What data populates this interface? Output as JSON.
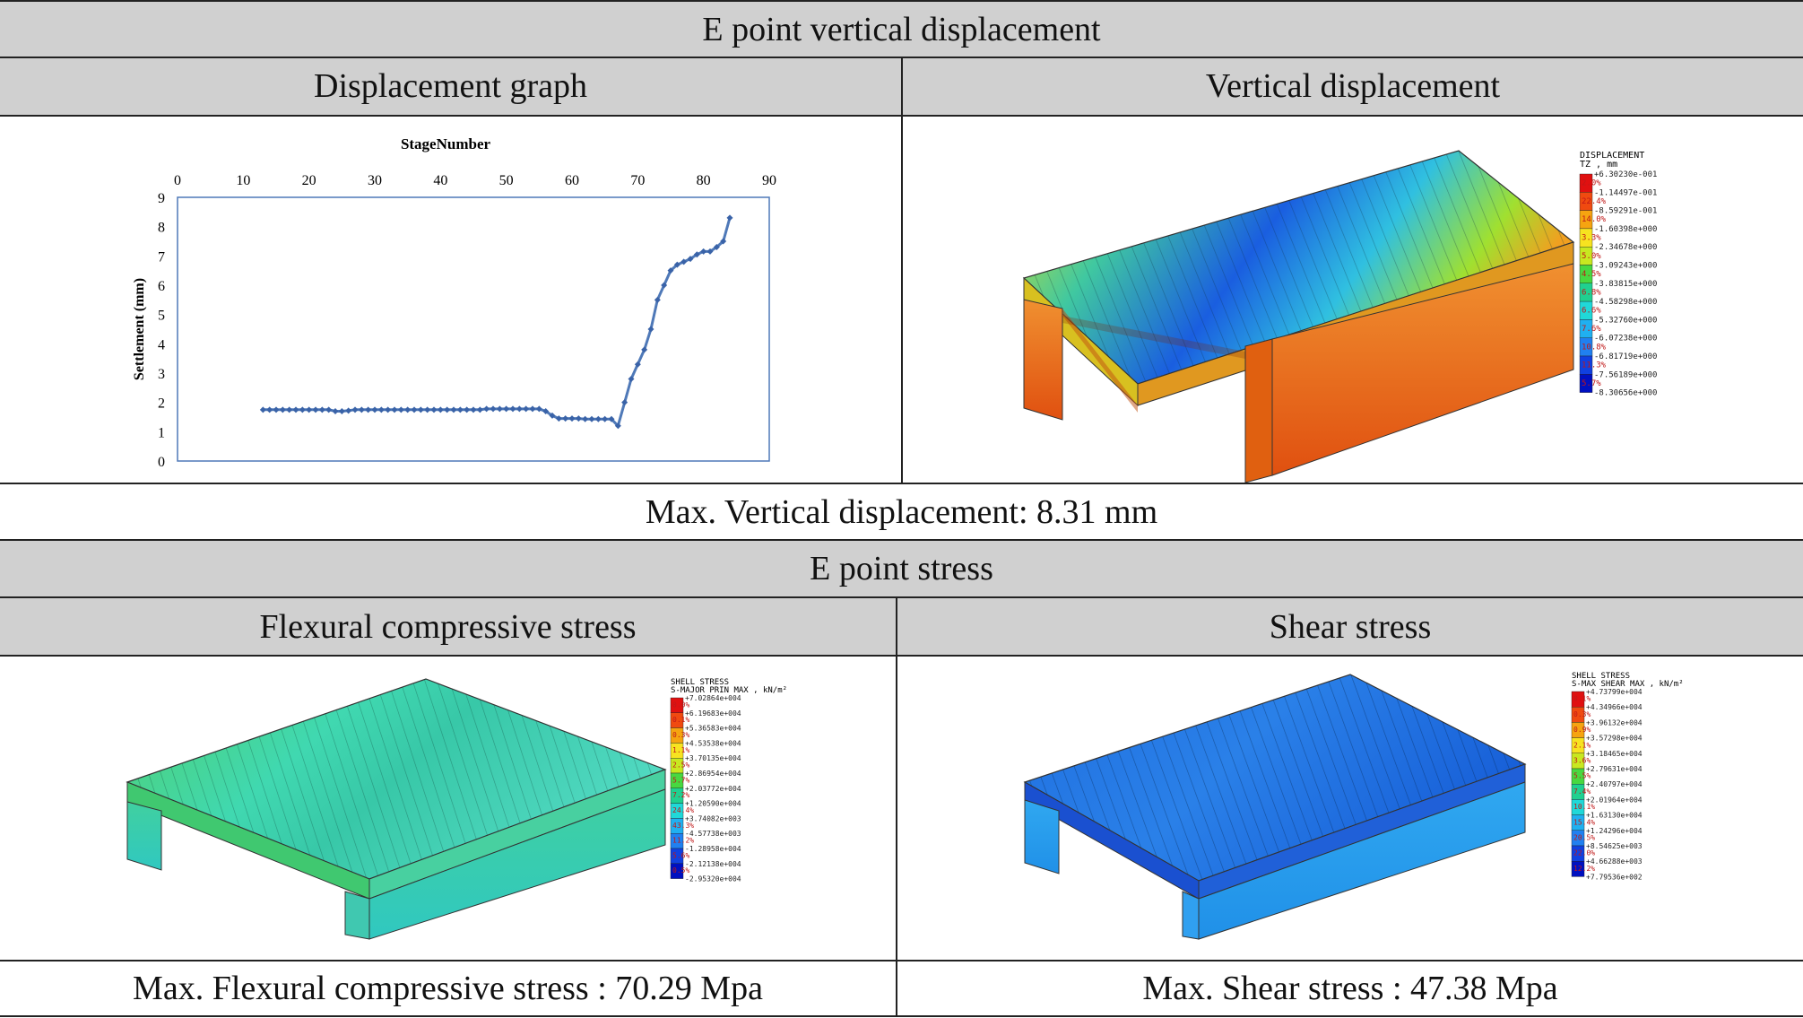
{
  "title": "E point vertical displacement",
  "displacement": {
    "graph_header": "Displacement graph",
    "contour_header": "Vertical displacement",
    "caption": "Max. Vertical displacement: 8.31 mm",
    "legend_title": "DISPLACEMENT",
    "legend_subtitle": "TZ , mm",
    "legend_values": [
      "+6.30230e-001",
      "-1.14497e-001",
      "-8.59291e-001",
      "-1.60398e+000",
      "-2.34678e+000",
      "-3.09243e+000",
      "-3.83815e+000",
      "-4.58298e+000",
      "-5.32760e+000",
      "-6.07238e+000",
      "-6.81719e+000",
      "-7.56189e+000",
      "-8.30656e+000"
    ],
    "legend_pcts": [
      "2.0%",
      "22.4%",
      "14.0%",
      "3.3%",
      "5.0%",
      "4.5%",
      "6.8%",
      "6.6%",
      "7.6%",
      "10.8%",
      "11.3%",
      "5.7%"
    ],
    "legend_colors": [
      "#e01010",
      "#f04a10",
      "#f6a410",
      "#f7e320",
      "#c8e820",
      "#48d840",
      "#20d090",
      "#20d8d8",
      "#20b0f0",
      "#2080f0",
      "#1040e0",
      "#0010c0"
    ]
  },
  "chart_data": {
    "type": "line",
    "title": "StageNumber",
    "xlabel": "StageNumber",
    "ylabel": "Settlement (mm)",
    "xlim": [
      0,
      90
    ],
    "ylim": [
      0,
      9
    ],
    "x_ticks": [
      "0",
      "10",
      "20",
      "30",
      "40",
      "50",
      "60",
      "70",
      "80",
      "90"
    ],
    "y_ticks": [
      "0",
      "1",
      "2",
      "3",
      "4",
      "5",
      "6",
      "7",
      "8",
      "9"
    ],
    "x": [
      13,
      14,
      15,
      16,
      17,
      18,
      19,
      20,
      21,
      22,
      23,
      24,
      25,
      26,
      27,
      28,
      29,
      30,
      31,
      32,
      33,
      34,
      35,
      36,
      37,
      38,
      39,
      40,
      41,
      42,
      43,
      44,
      45,
      46,
      47,
      48,
      49,
      50,
      51,
      52,
      53,
      54,
      55,
      56,
      57,
      58,
      59,
      60,
      61,
      62,
      63,
      64,
      65,
      66,
      67,
      68,
      69,
      70,
      71,
      72,
      73,
      74,
      75,
      76,
      77,
      78,
      79,
      80,
      81,
      82,
      83,
      84
    ],
    "y": [
      1.75,
      1.75,
      1.75,
      1.75,
      1.75,
      1.75,
      1.75,
      1.75,
      1.75,
      1.75,
      1.75,
      1.7,
      1.7,
      1.72,
      1.75,
      1.75,
      1.75,
      1.75,
      1.75,
      1.75,
      1.75,
      1.75,
      1.75,
      1.75,
      1.75,
      1.75,
      1.75,
      1.75,
      1.75,
      1.75,
      1.75,
      1.75,
      1.75,
      1.75,
      1.78,
      1.78,
      1.78,
      1.78,
      1.78,
      1.78,
      1.78,
      1.78,
      1.78,
      1.7,
      1.55,
      1.45,
      1.45,
      1.45,
      1.45,
      1.43,
      1.43,
      1.43,
      1.43,
      1.43,
      1.2,
      2.0,
      2.8,
      3.3,
      3.8,
      4.5,
      5.5,
      6.0,
      6.5,
      6.7,
      6.8,
      6.9,
      7.05,
      7.15,
      7.15,
      7.3,
      7.5,
      8.3
    ]
  },
  "stress": {
    "title": "E point stress",
    "flexural_header": "Flexural compressive stress",
    "shear_header": "Shear stress",
    "flexural_caption": "Max. Flexural compressive stress : 70.29 Mpa",
    "shear_caption": "Max. Shear stress : 47.38 Mpa",
    "flex_legend_title": "SHELL STRESS",
    "flex_legend_subtitle": "S-MAJOR PRIN MAX , kN/m²",
    "flex_legend_values": [
      "+7.02864e+004",
      "+6.19683e+004",
      "+5.36583e+004",
      "+4.53538e+004",
      "+3.70135e+004",
      "+2.86954e+004",
      "+2.03772e+004",
      "+1.20590e+004",
      "+3.74082e+003",
      "-4.57738e+003",
      "-1.28958e+004",
      "-2.12138e+004",
      "-2.95320e+004"
    ],
    "flex_legend_pcts": [
      "0.0%",
      "0.1%",
      "0.3%",
      "1.1%",
      "2.5%",
      "5.7%",
      "7.2%",
      "24.4%",
      "43.3%",
      "11.2%",
      "5.6%",
      "0.5%"
    ],
    "shear_legend_title": "SHELL STRESS",
    "shear_legend_subtitle": "S-MAX SHEAR MAX , kN/m²",
    "shear_legend_values": [
      "+4.73799e+004",
      "+4.34966e+004",
      "+3.96132e+004",
      "+3.57298e+004",
      "+3.18465e+004",
      "+2.79631e+004",
      "+2.40797e+004",
      "+2.01964e+004",
      "+1.63130e+004",
      "+1.24296e+004",
      "+8.54625e+003",
      "+4.66288e+003",
      "+7.79536e+002"
    ],
    "shear_legend_pcts": [
      "0.1%",
      "0.3%",
      "0.9%",
      "2.1%",
      "3.6%",
      "5.5%",
      "7.4%",
      "10.1%",
      "15.4%",
      "20.5%",
      "22.0%",
      "12.2%"
    ],
    "legend_colors": [
      "#e01010",
      "#f04a10",
      "#f6a410",
      "#f7e320",
      "#c8e820",
      "#48d840",
      "#20d090",
      "#20d8d8",
      "#20b0f0",
      "#2080f0",
      "#1040e0",
      "#0010c0"
    ]
  }
}
